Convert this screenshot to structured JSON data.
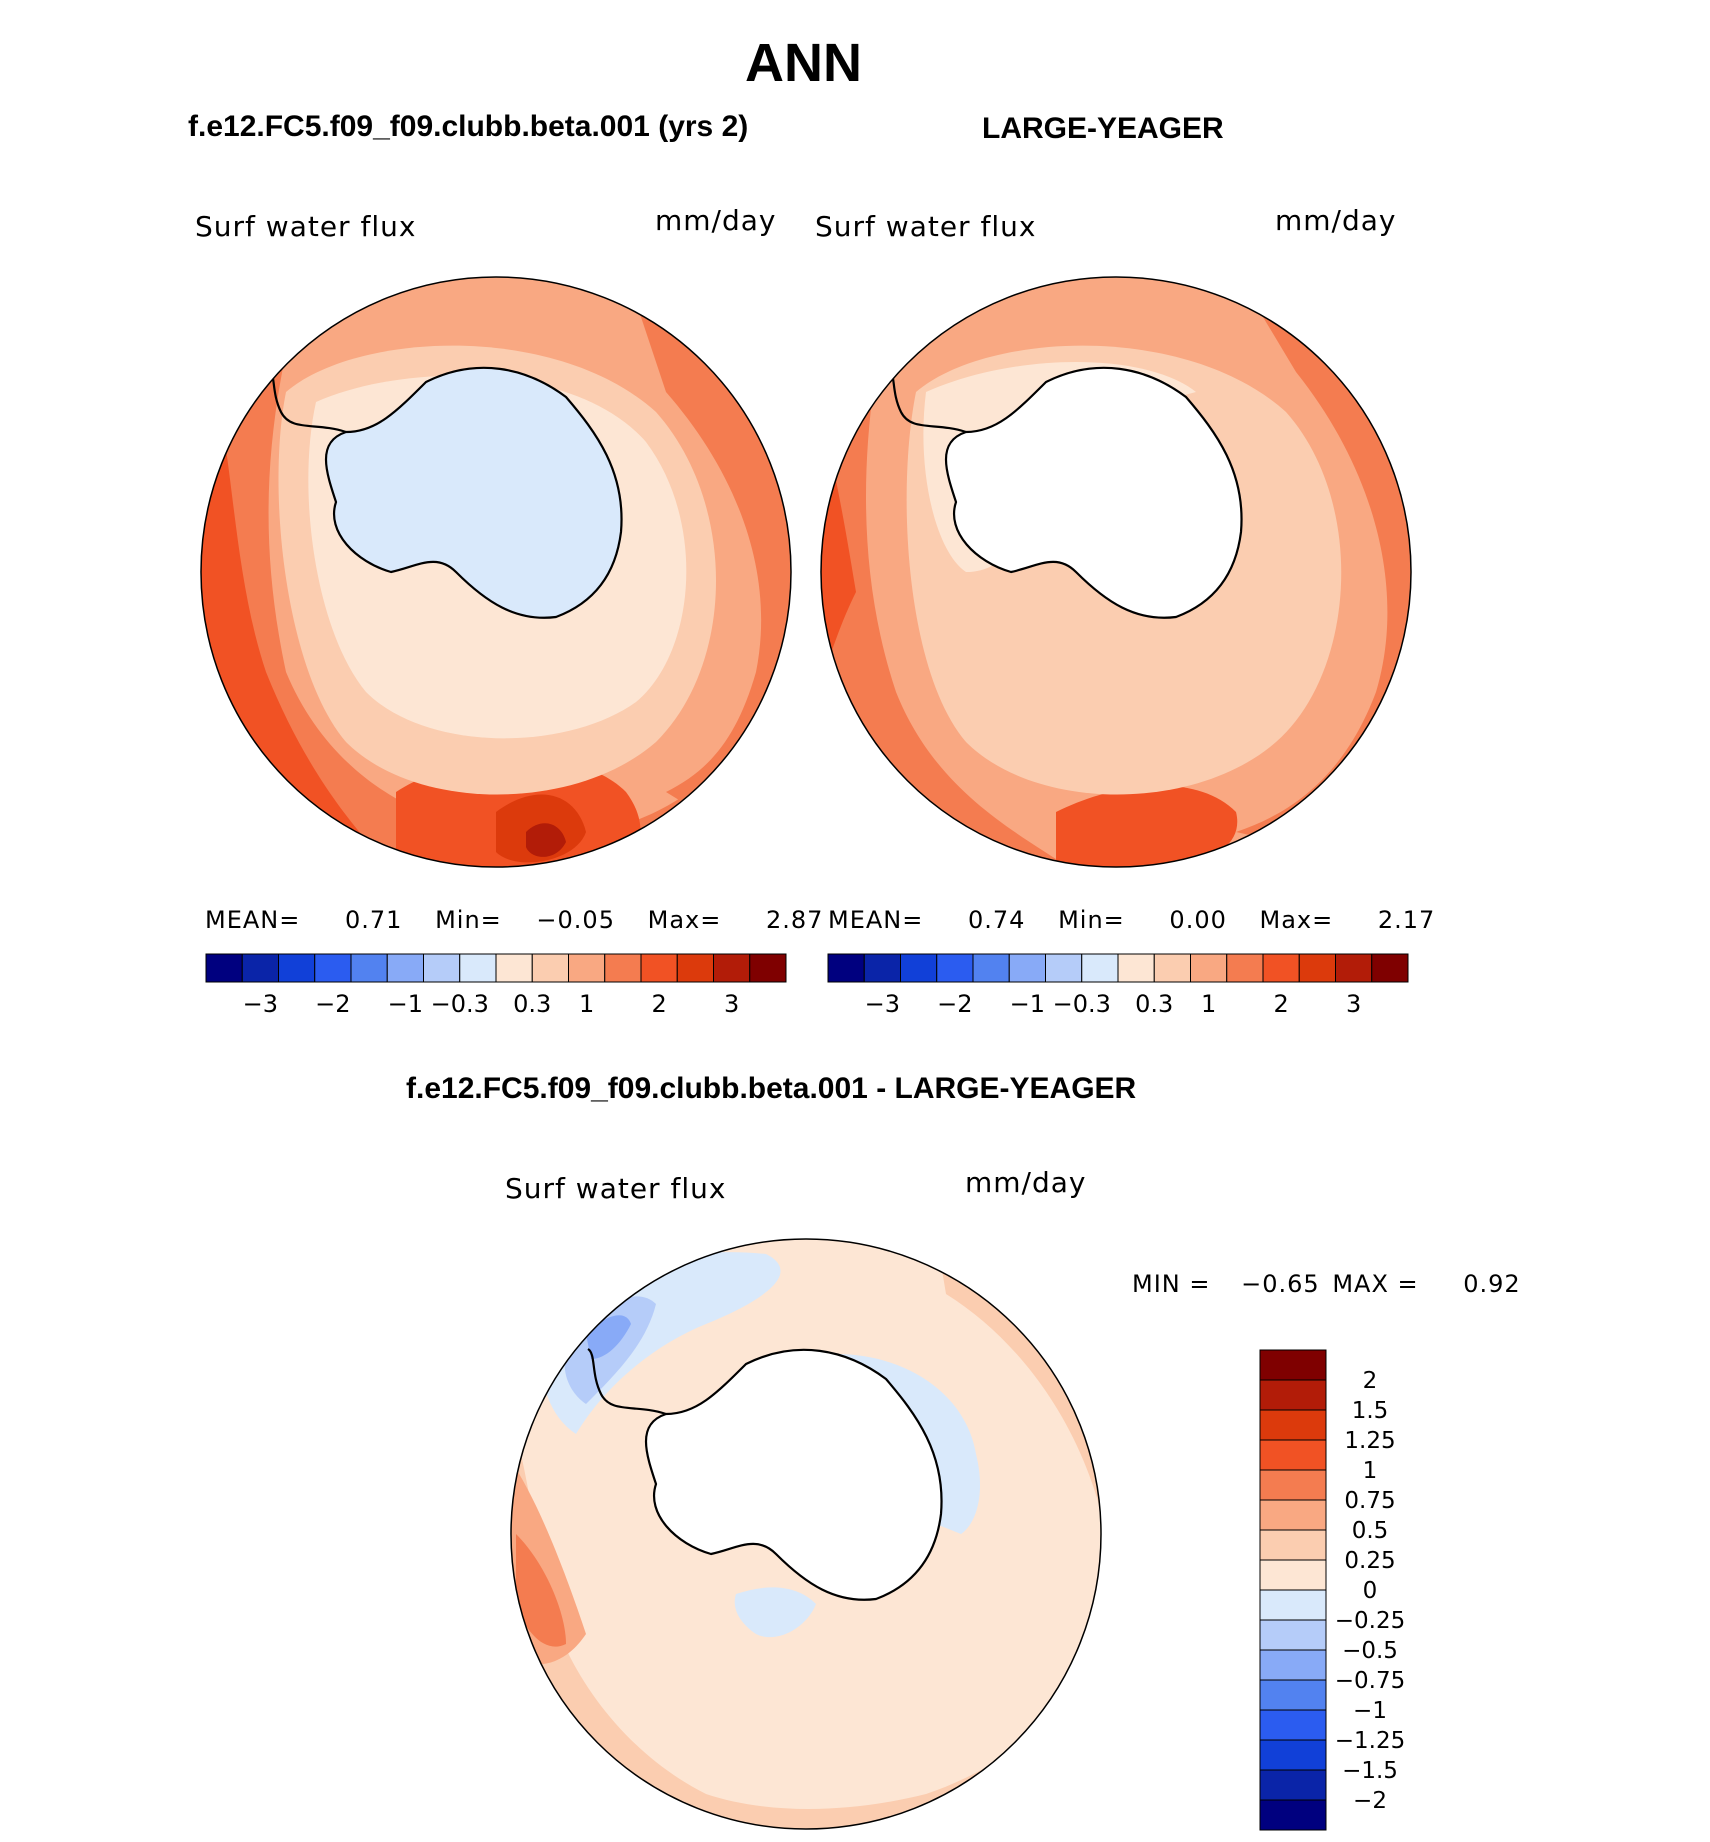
{
  "page": {
    "title": "ANN",
    "panel_left_title": "f.e12.FC5.f09_f09.clubb.beta.001 (yrs 2)",
    "panel_right_title": "LARGE-YEAGER",
    "diff_title": "f.e12.FC5.f09_f09.clubb.beta.001 - LARGE-YEAGER"
  },
  "panels": {
    "left": {
      "var_label": "Surf water flux",
      "units": "mm/day",
      "stats": {
        "mean_label": "MEAN=",
        "mean": "0.71",
        "min_label": "Min=",
        "min": "−0.05",
        "max_label": "Max=",
        "max": "2.87"
      }
    },
    "right": {
      "var_label": "Surf water flux",
      "units": "mm/day",
      "stats": {
        "mean_label": "MEAN=",
        "mean": "0.74",
        "min_label": "Min=",
        "min": "0.00",
        "max_label": "Max=",
        "max": "2.17"
      }
    },
    "diff": {
      "var_label": "Surf water flux",
      "units": "mm/day",
      "stats": {
        "min_label": "MIN =",
        "min": "−0.65",
        "max_label": "MAX =",
        "max": "0.92"
      }
    }
  },
  "colorbars": {
    "field": {
      "colors": [
        "#00007f",
        "#0a24a8",
        "#1140d8",
        "#2b5cf0",
        "#5282f0",
        "#88aaf7",
        "#b5ccf9",
        "#d9e9fb",
        "#fde6d4",
        "#fbcdb0",
        "#f9a882",
        "#f47c50",
        "#f15224",
        "#dc3a0c",
        "#b21c08",
        "#7f0000"
      ],
      "ticks": [
        "−3",
        "−2",
        "−1",
        "−0.3",
        "0.3",
        "1",
        "2",
        "3"
      ]
    },
    "diff": {
      "colors": [
        "#00007f",
        "#0a24a8",
        "#1140d8",
        "#2b5cf0",
        "#5282f0",
        "#88aaf7",
        "#b5ccf9",
        "#d9e9fb",
        "#fde6d4",
        "#fbcdb0",
        "#f9a882",
        "#f47c50",
        "#f15224",
        "#dc3a0c",
        "#b21c08",
        "#7f0000"
      ],
      "ticks": [
        "2",
        "1.5",
        "1.25",
        "1",
        "0.75",
        "0.5",
        "0.25",
        "0",
        "−0.25",
        "−0.5",
        "−0.75",
        "−1",
        "−1.25",
        "−1.5",
        "−2"
      ]
    }
  },
  "map_colors": {
    "land": "#ffffff",
    "left_land": "#d9e9fb",
    "left_coast": "#fde6d4",
    "c025": "#fde6d4",
    "c05": "#fbcdb0",
    "c075": "#f9a882",
    "c1": "#f47c50",
    "c125": "#f15224",
    "c15": "#dc3a0c",
    "c2": "#b21c08",
    "neg025": "#d9e9fb",
    "neg05": "#b5ccf9",
    "neg075": "#88aaf7"
  }
}
